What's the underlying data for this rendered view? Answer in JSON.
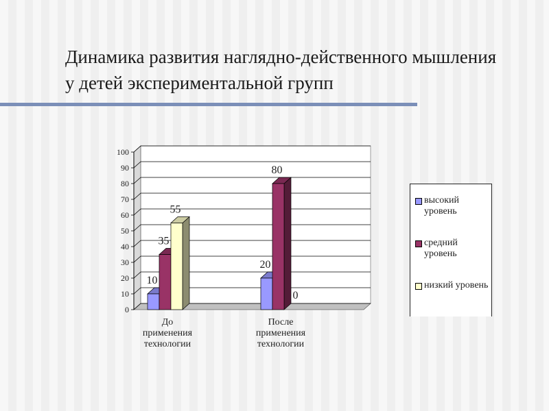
{
  "title": "Динамика развития наглядно-действенного мышления у детей экспериментальной групп",
  "chart_data": {
    "type": "bar",
    "categories": [
      "До применения технологии",
      "После применения технологии"
    ],
    "series": [
      {
        "name": "высокий уровень",
        "values": [
          10,
          20
        ],
        "color": "#9999ff"
      },
      {
        "name": "средний уровень",
        "values": [
          35,
          80
        ],
        "color": "#993366"
      },
      {
        "name": "низкий уровень",
        "values": [
          55,
          0
        ],
        "color": "#ffffcc"
      }
    ],
    "data_labels": [
      [
        "10",
        "35",
        "55"
      ],
      [
        "20",
        "80",
        "0"
      ]
    ],
    "yticks": [
      "0",
      "10",
      "20",
      "30",
      "40",
      "50",
      "60",
      "70",
      "80",
      "90",
      "100"
    ],
    "ylim": [
      0,
      100
    ],
    "grid": true,
    "three_d": true,
    "legend_position": "right"
  }
}
